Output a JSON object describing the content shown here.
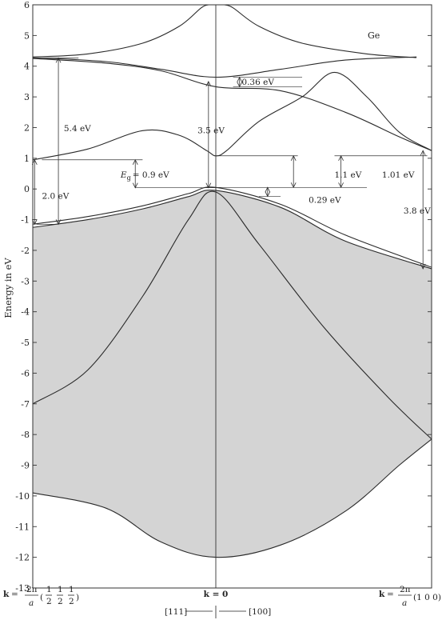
{
  "chart_data": {
    "type": "line",
    "material": "Ge",
    "ylabel": "Energy in eV",
    "xlabel": "",
    "ylim": [
      -13,
      6
    ],
    "y_ticks": [
      6,
      5,
      4,
      3,
      2,
      1,
      0,
      -1,
      -2,
      -3,
      -4,
      -5,
      -6,
      -7,
      -8,
      -9,
      -10,
      -11,
      -12,
      -13
    ],
    "y_tick_labels": [
      "6",
      "5",
      "4",
      "3",
      "2",
      "1",
      "0",
      "-1",
      "-2",
      "-3",
      "-4",
      "-5",
      "-6",
      "-7",
      "-8",
      "-9",
      "-10",
      "-11",
      "-12",
      "-13"
    ],
    "grid": false,
    "x_axis": {
      "k_left": "k",
      "eq": "=",
      "two_pi": "2π",
      "a": "a",
      "half": "1",
      "two": "2",
      "k_center": "k = 0",
      "k_right": "k",
      "right_vec": "(1 0 0)",
      "dir_111": "[111]",
      "dir_100": "[100]"
    },
    "x_domain": [
      -1,
      1
    ],
    "series": [
      {
        "points": [
          [
            -1,
            4.3
          ],
          [
            -0.7,
            4.4
          ],
          [
            -0.4,
            4.75
          ],
          [
            -0.2,
            5.3
          ],
          [
            -0.08,
            5.9
          ],
          [
            -0.04,
            6.0
          ]
        ]
      },
      {
        "points": [
          [
            0.04,
            6.0
          ],
          [
            0.08,
            5.9
          ],
          [
            0.2,
            5.3
          ],
          [
            0.4,
            4.75
          ],
          [
            0.7,
            4.4
          ],
          [
            0.93,
            4.28
          ]
        ]
      },
      {
        "points": [
          [
            -1,
            4.28
          ],
          [
            -0.6,
            4.15
          ],
          [
            -0.3,
            3.9
          ],
          [
            0,
            3.64
          ],
          [
            0.3,
            3.9
          ],
          [
            0.6,
            4.2
          ],
          [
            0.93,
            4.3
          ]
        ]
      },
      {
        "points": [
          [
            -1,
            4.25
          ],
          [
            -0.6,
            4.1
          ],
          [
            -0.3,
            3.85
          ],
          [
            0,
            3.33
          ],
          [
            0.3,
            3.2
          ],
          [
            0.6,
            2.5
          ],
          [
            0.85,
            1.7
          ],
          [
            1,
            1.25
          ]
        ]
      },
      {
        "points": [
          [
            -1,
            0.95
          ],
          [
            -0.7,
            1.3
          ],
          [
            -0.4,
            1.9
          ],
          [
            -0.2,
            1.75
          ],
          [
            -0.05,
            1.25
          ],
          [
            0,
            1.08
          ],
          [
            0.05,
            1.25
          ],
          [
            0.2,
            2.2
          ],
          [
            0.4,
            3.0
          ],
          [
            0.55,
            3.8
          ],
          [
            0.7,
            3.0
          ],
          [
            0.85,
            1.85
          ],
          [
            1,
            1.25
          ]
        ]
      },
      {
        "points": [
          [
            -1,
            -1.15
          ],
          [
            -0.7,
            -0.9
          ],
          [
            -0.4,
            -0.55
          ],
          [
            -0.15,
            -0.15
          ],
          [
            0,
            0.05
          ],
          [
            0.3,
            -0.5
          ],
          [
            0.6,
            -1.5
          ],
          [
            1,
            -2.55
          ]
        ]
      },
      {
        "points": [
          [
            -1,
            -1.25
          ],
          [
            -0.7,
            -1.0
          ],
          [
            -0.4,
            -0.65
          ],
          [
            -0.15,
            -0.25
          ],
          [
            0,
            -0.05
          ],
          [
            0.3,
            -0.6
          ],
          [
            0.6,
            -1.7
          ],
          [
            1,
            -2.6
          ]
        ]
      },
      {
        "points": [
          [
            -1,
            -7.0
          ],
          [
            -0.7,
            -5.9
          ],
          [
            -0.4,
            -3.5
          ],
          [
            -0.15,
            -1.0
          ],
          [
            0,
            -0.1
          ],
          [
            0.2,
            -1.8
          ],
          [
            0.5,
            -4.5
          ],
          [
            0.8,
            -6.8
          ],
          [
            1,
            -8.15
          ]
        ]
      },
      {
        "points": [
          [
            -1,
            -9.9
          ],
          [
            -0.6,
            -10.4
          ],
          [
            -0.3,
            -11.5
          ],
          [
            0,
            -12.0
          ],
          [
            0.3,
            -11.6
          ],
          [
            0.6,
            -10.5
          ],
          [
            0.85,
            -9.0
          ],
          [
            1,
            -8.15
          ]
        ]
      }
    ],
    "shaded_region": {
      "upper": [
        [
          -1,
          -1.25
        ],
        [
          -0.7,
          -1.0
        ],
        [
          -0.4,
          -0.65
        ],
        [
          -0.15,
          -0.25
        ],
        [
          0,
          -0.05
        ],
        [
          0.3,
          -0.6
        ],
        [
          0.6,
          -1.7
        ],
        [
          1,
          -2.6
        ]
      ],
      "lower": [
        [
          -1,
          -9.9
        ],
        [
          -0.6,
          -10.4
        ],
        [
          -0.3,
          -11.5
        ],
        [
          0,
          -12.0
        ],
        [
          0.3,
          -11.6
        ],
        [
          0.6,
          -10.5
        ],
        [
          0.85,
          -9.0
        ],
        [
          1,
          -8.15
        ]
      ]
    },
    "annotations": [
      {
        "text": "0.36 eV",
        "x": 0.12,
        "y": 3.5
      },
      {
        "text": "5.4 eV",
        "x": -0.83,
        "y": 1.98
      },
      {
        "text": "3.5 eV",
        "x": -0.1,
        "y": 1.92
      },
      {
        "text": "2.0 eV",
        "x": -0.95,
        "y": -0.22
      },
      {
        "text": "0.29 eV",
        "x": 0.43,
        "y": -0.35
      },
      {
        "text": "1.1 eV",
        "x": 0.55,
        "y": 0.48
      },
      {
        "text": "1.01 eV",
        "x": 0.77,
        "y": 0.48
      },
      {
        "text": "3.8 eV",
        "x": 0.87,
        "y": -0.7
      }
    ],
    "gap_label": {
      "symbol": "E",
      "sub": "g",
      "value": "= 0.9 eV",
      "x": -0.52,
      "y": 0.48
    }
  }
}
